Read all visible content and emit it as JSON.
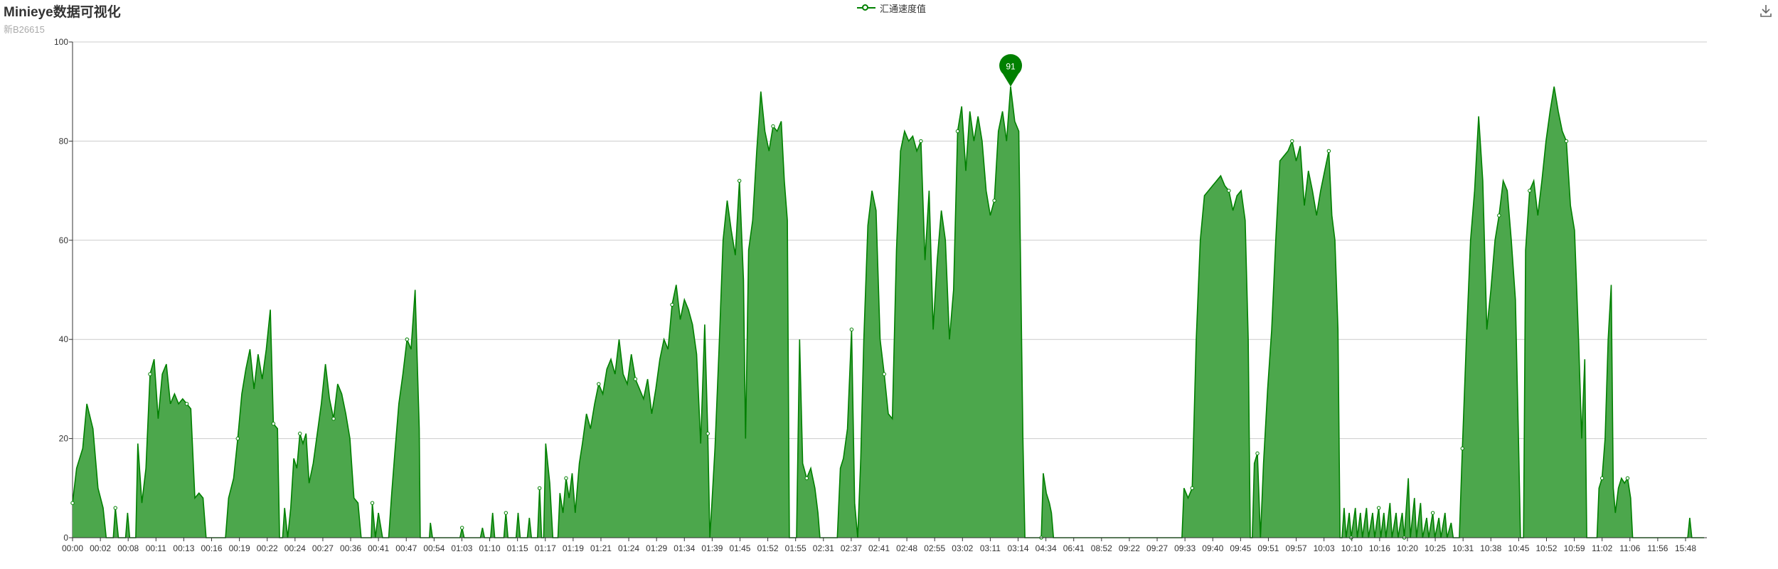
{
  "title": "Minieye数据可视化",
  "subtitle": "新B26615",
  "legend": {
    "label": "汇通速度值",
    "icon": "circle-line-marker"
  },
  "toolbox": {
    "icon": "download-icon"
  },
  "colors": {
    "series": "#008000",
    "area": "#4CA74C",
    "grid": "#cccccc",
    "axis": "#333333"
  },
  "markpoint": {
    "label": "91"
  },
  "chart_data": {
    "type": "area",
    "title": "Minieye数据可视化",
    "subtitle": "新B26615",
    "ylim": [
      0,
      100
    ],
    "yticks": [
      0,
      20,
      40,
      60,
      80,
      100
    ],
    "grid": true,
    "legend_position": "top-center",
    "series": [
      {
        "name": "汇通速度值",
        "color": "#008000",
        "fill": "#4CA74C"
      }
    ],
    "x_labels": [
      "00:00",
      "00:02",
      "00:08",
      "00:11",
      "00:13",
      "00:16",
      "00:19",
      "00:22",
      "00:24",
      "00:27",
      "00:36",
      "00:41",
      "00:47",
      "00:54",
      "01:03",
      "01:10",
      "01:15",
      "01:17",
      "01:19",
      "01:21",
      "01:24",
      "01:29",
      "01:34",
      "01:39",
      "01:45",
      "01:52",
      "01:55",
      "02:31",
      "02:37",
      "02:41",
      "02:48",
      "02:55",
      "03:02",
      "03:11",
      "03:14",
      "04:34",
      "06:41",
      "08:52",
      "09:22",
      "09:27",
      "09:33",
      "09:40",
      "09:45",
      "09:51",
      "09:57",
      "10:03",
      "10:10",
      "10:16",
      "10:20",
      "10:25",
      "10:31",
      "10:38",
      "10:45",
      "10:52",
      "10:59",
      "11:02",
      "11:06",
      "11:56",
      "15:48"
    ],
    "profile": [
      [
        0,
        7
      ],
      [
        0.4,
        14
      ],
      [
        1,
        18
      ],
      [
        1.4,
        27
      ],
      [
        2,
        22
      ],
      [
        2.5,
        10
      ],
      [
        3,
        6
      ],
      [
        3.3,
        0
      ],
      [
        4,
        0
      ],
      [
        4.2,
        6
      ],
      [
        4.5,
        0
      ],
      [
        5.2,
        0
      ],
      [
        5.4,
        5
      ],
      [
        5.6,
        0
      ],
      [
        6.2,
        0
      ],
      [
        6.4,
        19
      ],
      [
        6.8,
        7
      ],
      [
        7.2,
        14
      ],
      [
        7.6,
        33
      ],
      [
        8,
        36
      ],
      [
        8.4,
        24
      ],
      [
        8.8,
        33
      ],
      [
        9.2,
        35
      ],
      [
        9.6,
        27
      ],
      [
        10,
        29
      ],
      [
        10.4,
        27
      ],
      [
        10.8,
        28
      ],
      [
        11.2,
        27
      ],
      [
        11.6,
        26
      ],
      [
        12,
        8
      ],
      [
        12.4,
        9
      ],
      [
        12.8,
        8
      ],
      [
        13.1,
        0
      ],
      [
        15,
        0
      ],
      [
        15.3,
        8
      ],
      [
        15.8,
        12
      ],
      [
        16.2,
        20
      ],
      [
        16.6,
        29
      ],
      [
        17,
        34
      ],
      [
        17.4,
        38
      ],
      [
        17.8,
        30
      ],
      [
        18.2,
        37
      ],
      [
        18.6,
        32
      ],
      [
        19,
        38
      ],
      [
        19.4,
        46
      ],
      [
        19.7,
        23
      ],
      [
        20.1,
        22
      ],
      [
        20.3,
        0
      ],
      [
        20.6,
        0
      ],
      [
        20.8,
        6
      ],
      [
        21.1,
        0
      ],
      [
        21.4,
        6
      ],
      [
        21.7,
        16
      ],
      [
        22,
        14
      ],
      [
        22.3,
        21
      ],
      [
        22.6,
        19
      ],
      [
        22.9,
        21
      ],
      [
        23.2,
        11
      ],
      [
        23.6,
        15
      ],
      [
        24,
        21
      ],
      [
        24.4,
        27
      ],
      [
        24.8,
        35
      ],
      [
        25.2,
        28
      ],
      [
        25.6,
        24
      ],
      [
        26,
        31
      ],
      [
        26.4,
        29
      ],
      [
        26.8,
        25
      ],
      [
        27.2,
        20
      ],
      [
        27.6,
        8
      ],
      [
        28,
        7
      ],
      [
        28.3,
        0
      ],
      [
        29.3,
        0
      ],
      [
        29.4,
        7
      ],
      [
        29.7,
        0
      ],
      [
        30,
        5
      ],
      [
        30.4,
        0
      ],
      [
        31,
        0
      ],
      [
        31.3,
        9
      ],
      [
        31.6,
        17
      ],
      [
        32,
        27
      ],
      [
        32.4,
        33
      ],
      [
        32.8,
        40
      ],
      [
        33.2,
        38
      ],
      [
        33.6,
        50
      ],
      [
        34,
        22
      ],
      [
        34.1,
        0
      ],
      [
        35,
        0
      ],
      [
        35.1,
        3
      ],
      [
        35.3,
        0
      ],
      [
        38,
        0
      ],
      [
        38.2,
        2
      ],
      [
        38.4,
        0
      ],
      [
        40,
        0
      ],
      [
        40.2,
        2
      ],
      [
        40.4,
        0
      ],
      [
        41,
        0
      ],
      [
        41.2,
        5
      ],
      [
        41.4,
        0
      ],
      [
        42.3,
        0
      ],
      [
        42.5,
        5
      ],
      [
        42.7,
        0
      ],
      [
        43.5,
        0
      ],
      [
        43.7,
        5
      ],
      [
        43.9,
        0
      ],
      [
        44.6,
        0
      ],
      [
        44.8,
        4
      ],
      [
        45,
        0
      ],
      [
        45.6,
        0
      ],
      [
        45.8,
        10
      ],
      [
        46,
        0
      ],
      [
        46.2,
        0
      ],
      [
        46.4,
        19
      ],
      [
        46.8,
        11
      ],
      [
        47.1,
        0
      ],
      [
        47.6,
        0
      ],
      [
        47.8,
        9
      ],
      [
        48.1,
        5
      ],
      [
        48.4,
        12
      ],
      [
        48.7,
        8
      ],
      [
        49,
        13
      ],
      [
        49.3,
        5
      ],
      [
        49.7,
        15
      ],
      [
        50,
        19
      ],
      [
        50.4,
        25
      ],
      [
        50.8,
        22
      ],
      [
        51.2,
        27
      ],
      [
        51.6,
        31
      ],
      [
        52,
        29
      ],
      [
        52.4,
        34
      ],
      [
        52.8,
        36
      ],
      [
        53.2,
        33
      ],
      [
        53.6,
        40
      ],
      [
        54,
        33
      ],
      [
        54.4,
        31
      ],
      [
        54.8,
        37
      ],
      [
        55.2,
        32
      ],
      [
        55.6,
        30
      ],
      [
        56,
        28
      ],
      [
        56.4,
        32
      ],
      [
        56.8,
        25
      ],
      [
        57.2,
        30
      ],
      [
        57.6,
        36
      ],
      [
        58,
        40
      ],
      [
        58.4,
        38
      ],
      [
        58.8,
        47
      ],
      [
        59.2,
        51
      ],
      [
        59.6,
        44
      ],
      [
        60,
        48
      ],
      [
        60.4,
        46
      ],
      [
        60.8,
        43
      ],
      [
        61.2,
        37
      ],
      [
        61.6,
        19
      ],
      [
        62,
        43
      ],
      [
        62.3,
        21
      ],
      [
        62.5,
        0
      ],
      [
        62.7,
        7
      ],
      [
        63,
        18
      ],
      [
        63.4,
        38
      ],
      [
        63.8,
        60
      ],
      [
        64.2,
        68
      ],
      [
        64.6,
        62
      ],
      [
        65,
        57
      ],
      [
        65.4,
        72
      ],
      [
        65.8,
        52
      ],
      [
        66,
        20
      ],
      [
        66.3,
        58
      ],
      [
        66.7,
        64
      ],
      [
        67.1,
        78
      ],
      [
        67.5,
        90
      ],
      [
        67.9,
        82
      ],
      [
        68.3,
        78
      ],
      [
        68.7,
        83
      ],
      [
        69.1,
        82
      ],
      [
        69.5,
        84
      ],
      [
        69.8,
        72
      ],
      [
        70.1,
        64
      ],
      [
        70.3,
        0
      ],
      [
        71,
        0
      ],
      [
        71.3,
        40
      ],
      [
        71.6,
        15
      ],
      [
        72,
        12
      ],
      [
        72.4,
        14
      ],
      [
        72.8,
        10
      ],
      [
        73.1,
        5
      ],
      [
        73.3,
        0
      ],
      [
        75,
        0
      ],
      [
        75.3,
        14
      ],
      [
        75.6,
        16
      ],
      [
        76,
        22
      ],
      [
        76.4,
        42
      ],
      [
        76.7,
        7
      ],
      [
        77,
        0
      ],
      [
        77.3,
        16
      ],
      [
        77.6,
        40
      ],
      [
        78,
        63
      ],
      [
        78.4,
        70
      ],
      [
        78.8,
        66
      ],
      [
        79.2,
        40
      ],
      [
        79.6,
        33
      ],
      [
        80,
        25
      ],
      [
        80.4,
        24
      ],
      [
        80.8,
        58
      ],
      [
        81.2,
        78
      ],
      [
        81.6,
        82
      ],
      [
        82,
        80
      ],
      [
        82.4,
        81
      ],
      [
        82.8,
        78
      ],
      [
        83.2,
        80
      ],
      [
        83.6,
        56
      ],
      [
        84,
        70
      ],
      [
        84.4,
        42
      ],
      [
        84.8,
        56
      ],
      [
        85.2,
        66
      ],
      [
        85.6,
        60
      ],
      [
        86,
        40
      ],
      [
        86.4,
        50
      ],
      [
        86.8,
        82
      ],
      [
        87.2,
        87
      ],
      [
        87.6,
        74
      ],
      [
        88,
        86
      ],
      [
        88.4,
        80
      ],
      [
        88.8,
        85
      ],
      [
        89.2,
        80
      ],
      [
        89.6,
        70
      ],
      [
        90,
        65
      ],
      [
        90.4,
        68
      ],
      [
        90.8,
        82
      ],
      [
        91.2,
        86
      ],
      [
        91.6,
        80
      ],
      [
        92,
        91
      ],
      [
        92.4,
        84
      ],
      [
        92.8,
        82
      ],
      [
        93.2,
        20
      ],
      [
        93.4,
        0
      ],
      [
        95,
        0
      ],
      [
        95.2,
        13
      ],
      [
        95.5,
        9
      ],
      [
        95.8,
        7
      ],
      [
        96,
        5
      ],
      [
        96.2,
        0
      ],
      [
        108.8,
        0
      ],
      [
        109,
        10
      ],
      [
        109.4,
        8
      ],
      [
        109.8,
        10
      ],
      [
        110.2,
        40
      ],
      [
        110.6,
        60
      ],
      [
        111,
        69
      ],
      [
        111.4,
        70
      ],
      [
        111.8,
        71
      ],
      [
        112.2,
        72
      ],
      [
        112.6,
        73
      ],
      [
        113,
        71
      ],
      [
        113.4,
        70
      ],
      [
        113.8,
        66
      ],
      [
        114.2,
        69
      ],
      [
        114.6,
        70
      ],
      [
        115,
        64
      ],
      [
        115.3,
        40
      ],
      [
        115.5,
        0
      ],
      [
        115.7,
        0
      ],
      [
        115.9,
        15
      ],
      [
        116.2,
        17
      ],
      [
        116.5,
        0
      ],
      [
        116.8,
        15
      ],
      [
        117.2,
        30
      ],
      [
        117.6,
        42
      ],
      [
        118,
        60
      ],
      [
        118.4,
        76
      ],
      [
        118.8,
        77
      ],
      [
        119.2,
        78
      ],
      [
        119.6,
        80
      ],
      [
        120,
        76
      ],
      [
        120.4,
        79
      ],
      [
        120.8,
        67
      ],
      [
        121.2,
        74
      ],
      [
        121.6,
        70
      ],
      [
        122,
        65
      ],
      [
        122.4,
        70
      ],
      [
        122.8,
        74
      ],
      [
        123.2,
        78
      ],
      [
        123.5,
        65
      ],
      [
        123.8,
        60
      ],
      [
        124.1,
        42
      ],
      [
        124.3,
        0
      ],
      [
        124.5,
        0
      ],
      [
        124.7,
        6
      ],
      [
        124.9,
        0
      ],
      [
        125.2,
        5
      ],
      [
        125.4,
        0
      ],
      [
        125.8,
        6
      ],
      [
        126,
        0
      ],
      [
        126.3,
        5
      ],
      [
        126.5,
        0
      ],
      [
        126.9,
        6
      ],
      [
        127.1,
        0
      ],
      [
        127.5,
        5
      ],
      [
        127.7,
        0
      ],
      [
        128.1,
        6
      ],
      [
        128.3,
        0
      ],
      [
        128.6,
        5
      ],
      [
        128.8,
        0
      ],
      [
        129.2,
        7
      ],
      [
        129.4,
        0
      ],
      [
        129.8,
        5
      ],
      [
        130,
        0
      ],
      [
        130.4,
        5
      ],
      [
        130.6,
        0
      ],
      [
        131,
        12
      ],
      [
        131.2,
        0
      ],
      [
        131.6,
        8
      ],
      [
        131.8,
        0
      ],
      [
        132.2,
        7
      ],
      [
        132.4,
        0
      ],
      [
        132.8,
        4
      ],
      [
        133,
        0
      ],
      [
        133.4,
        5
      ],
      [
        133.6,
        0
      ],
      [
        134,
        4
      ],
      [
        134.2,
        0
      ],
      [
        134.6,
        5
      ],
      [
        134.8,
        0
      ],
      [
        135.2,
        3
      ],
      [
        135.4,
        0
      ],
      [
        136,
        0
      ],
      [
        136.3,
        18
      ],
      [
        136.7,
        40
      ],
      [
        137.1,
        60
      ],
      [
        137.5,
        70
      ],
      [
        137.9,
        85
      ],
      [
        138.3,
        72
      ],
      [
        138.7,
        42
      ],
      [
        139.1,
        50
      ],
      [
        139.5,
        60
      ],
      [
        139.9,
        65
      ],
      [
        140.3,
        72
      ],
      [
        140.7,
        70
      ],
      [
        141.1,
        60
      ],
      [
        141.5,
        48
      ],
      [
        141.8,
        20
      ],
      [
        142,
        0
      ],
      [
        142.3,
        0
      ],
      [
        142.5,
        58
      ],
      [
        142.9,
        70
      ],
      [
        143.3,
        72
      ],
      [
        143.7,
        65
      ],
      [
        144.1,
        72
      ],
      [
        144.5,
        80
      ],
      [
        144.9,
        86
      ],
      [
        145.3,
        91
      ],
      [
        145.7,
        86
      ],
      [
        146.1,
        82
      ],
      [
        146.5,
        80
      ],
      [
        146.9,
        67
      ],
      [
        147.3,
        62
      ],
      [
        147.7,
        40
      ],
      [
        148,
        20
      ],
      [
        148.3,
        36
      ],
      [
        148.5,
        0
      ],
      [
        149.5,
        0
      ],
      [
        149.7,
        10
      ],
      [
        150,
        12
      ],
      [
        150.3,
        20
      ],
      [
        150.6,
        40
      ],
      [
        150.9,
        51
      ],
      [
        151.1,
        10
      ],
      [
        151.3,
        5
      ],
      [
        151.6,
        10
      ],
      [
        151.9,
        12
      ],
      [
        152.2,
        11
      ],
      [
        152.5,
        12
      ],
      [
        152.8,
        8
      ],
      [
        153,
        0
      ],
      [
        158.4,
        0
      ],
      [
        158.6,
        4
      ],
      [
        158.8,
        0
      ],
      [
        160,
        0
      ]
    ]
  }
}
